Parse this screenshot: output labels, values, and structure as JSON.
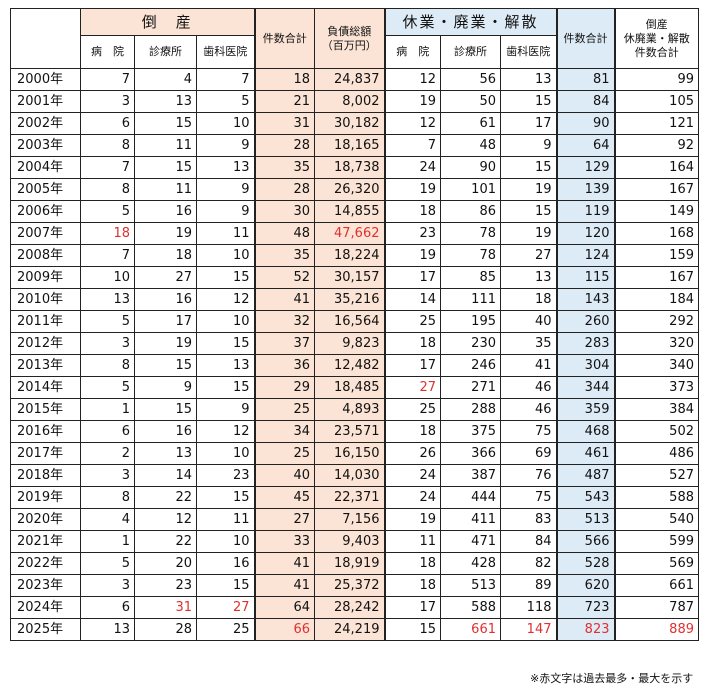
{
  "header": {
    "bankruptcy": "倒　産",
    "closure": "休業・廃業・解散",
    "total": "件数合計",
    "debt_line1": "負債総額",
    "debt_line2": "（百万円）",
    "combined_line1": "倒産",
    "combined_line2": "休廃業・解散",
    "combined_line3": "件数合計",
    "hospital": "病　院",
    "clinic": "診療所",
    "dental": "歯科医院"
  },
  "note": "※赤文字は過去最多・最大を示す",
  "colors": {
    "bankruptcy_bg": "#fbe4d5",
    "closure_bg": "#ddebf7",
    "highlight": "#e03030"
  },
  "chart_data": {
    "type": "table",
    "columns": [
      "年",
      "倒産_病院",
      "倒産_診療所",
      "倒産_歯科医院",
      "倒産_件数合計",
      "負債総額(百万円)",
      "休廃業_病院",
      "休廃業_診療所",
      "休廃業_歯科医院",
      "休廃業_件数合計",
      "倒産+休廃業・解散 件数合計"
    ],
    "rows": [
      {
        "year": "2000年",
        "v": [
          "7",
          "4",
          "7",
          "18",
          "24,837",
          "12",
          "56",
          "13",
          "81",
          "99"
        ]
      },
      {
        "year": "2001年",
        "v": [
          "3",
          "13",
          "5",
          "21",
          "8,002",
          "19",
          "50",
          "15",
          "84",
          "105"
        ]
      },
      {
        "year": "2002年",
        "v": [
          "6",
          "15",
          "10",
          "31",
          "30,182",
          "12",
          "61",
          "17",
          "90",
          "121"
        ]
      },
      {
        "year": "2003年",
        "v": [
          "8",
          "11",
          "9",
          "28",
          "18,165",
          "7",
          "48",
          "9",
          "64",
          "92"
        ]
      },
      {
        "year": "2004年",
        "v": [
          "7",
          "15",
          "13",
          "35",
          "18,738",
          "24",
          "90",
          "15",
          "129",
          "164"
        ]
      },
      {
        "year": "2005年",
        "v": [
          "8",
          "11",
          "9",
          "28",
          "26,320",
          "19",
          "101",
          "19",
          "139",
          "167"
        ]
      },
      {
        "year": "2006年",
        "v": [
          "5",
          "16",
          "9",
          "30",
          "14,855",
          "18",
          "86",
          "15",
          "119",
          "149"
        ]
      },
      {
        "year": "2007年",
        "v": [
          "18",
          "19",
          "11",
          "48",
          "47,662",
          "23",
          "78",
          "19",
          "120",
          "168"
        ]
      },
      {
        "year": "2008年",
        "v": [
          "7",
          "18",
          "10",
          "35",
          "18,224",
          "19",
          "78",
          "27",
          "124",
          "159"
        ]
      },
      {
        "year": "2009年",
        "v": [
          "10",
          "27",
          "15",
          "52",
          "30,157",
          "17",
          "85",
          "13",
          "115",
          "167"
        ]
      },
      {
        "year": "2010年",
        "v": [
          "13",
          "16",
          "12",
          "41",
          "35,216",
          "14",
          "111",
          "18",
          "143",
          "184"
        ]
      },
      {
        "year": "2011年",
        "v": [
          "5",
          "17",
          "10",
          "32",
          "16,564",
          "25",
          "195",
          "40",
          "260",
          "292"
        ]
      },
      {
        "year": "2012年",
        "v": [
          "3",
          "19",
          "15",
          "37",
          "9,823",
          "18",
          "230",
          "35",
          "283",
          "320"
        ]
      },
      {
        "year": "2013年",
        "v": [
          "8",
          "15",
          "13",
          "36",
          "12,482",
          "17",
          "246",
          "41",
          "304",
          "340"
        ]
      },
      {
        "year": "2014年",
        "v": [
          "5",
          "9",
          "15",
          "29",
          "18,485",
          "27",
          "271",
          "46",
          "344",
          "373"
        ]
      },
      {
        "year": "2015年",
        "v": [
          "1",
          "15",
          "9",
          "25",
          "4,893",
          "25",
          "288",
          "46",
          "359",
          "384"
        ]
      },
      {
        "year": "2016年",
        "v": [
          "6",
          "16",
          "12",
          "34",
          "23,571",
          "18",
          "375",
          "75",
          "468",
          "502"
        ]
      },
      {
        "year": "2017年",
        "v": [
          "2",
          "13",
          "10",
          "25",
          "16,150",
          "26",
          "366",
          "69",
          "461",
          "486"
        ]
      },
      {
        "year": "2018年",
        "v": [
          "3",
          "14",
          "23",
          "40",
          "14,030",
          "24",
          "387",
          "76",
          "487",
          "527"
        ]
      },
      {
        "year": "2019年",
        "v": [
          "8",
          "22",
          "15",
          "45",
          "22,371",
          "24",
          "444",
          "75",
          "543",
          "588"
        ]
      },
      {
        "year": "2020年",
        "v": [
          "4",
          "12",
          "11",
          "27",
          "7,156",
          "19",
          "411",
          "83",
          "513",
          "540"
        ]
      },
      {
        "year": "2021年",
        "v": [
          "1",
          "22",
          "10",
          "33",
          "9,403",
          "11",
          "471",
          "84",
          "566",
          "599"
        ]
      },
      {
        "year": "2022年",
        "v": [
          "5",
          "20",
          "16",
          "41",
          "18,919",
          "18",
          "428",
          "82",
          "528",
          "569"
        ]
      },
      {
        "year": "2023年",
        "v": [
          "3",
          "23",
          "15",
          "41",
          "25,372",
          "18",
          "513",
          "89",
          "620",
          "661"
        ]
      },
      {
        "year": "2024年",
        "v": [
          "6",
          "31",
          "27",
          "64",
          "28,242",
          "17",
          "588",
          "118",
          "723",
          "787"
        ]
      },
      {
        "year": "2025年",
        "v": [
          "13",
          "28",
          "25",
          "66",
          "24,219",
          "15",
          "661",
          "147",
          "823",
          "889"
        ]
      }
    ],
    "highlights": [
      [
        7,
        0
      ],
      [
        7,
        4
      ],
      [
        24,
        1
      ],
      [
        24,
        2
      ],
      [
        25,
        3
      ],
      [
        14,
        5
      ],
      [
        25,
        6
      ],
      [
        25,
        7
      ],
      [
        25,
        8
      ],
      [
        25,
        9
      ]
    ]
  }
}
